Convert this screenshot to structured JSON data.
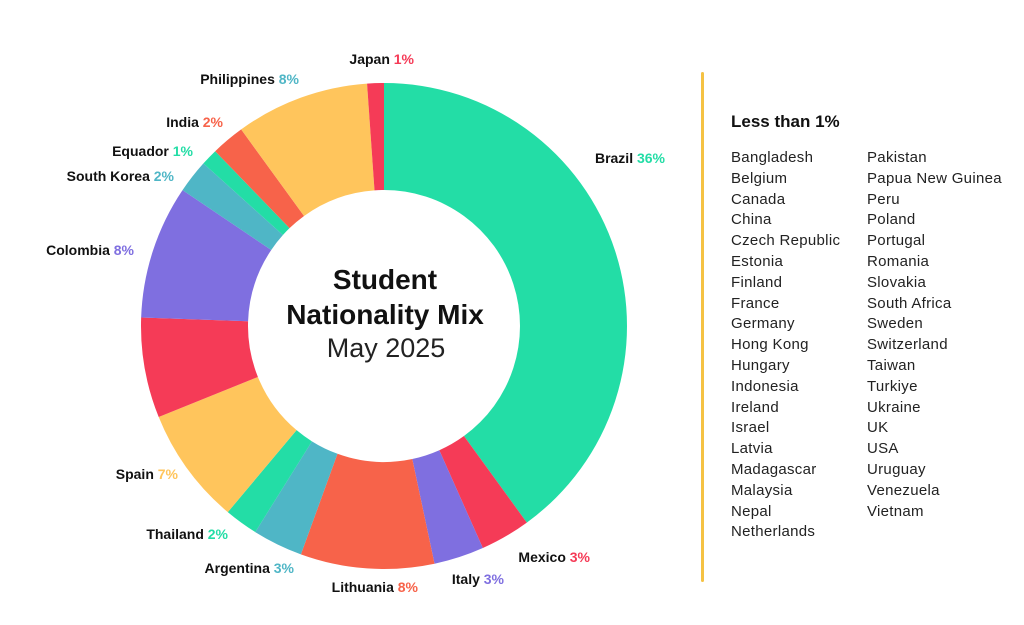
{
  "chart_data": {
    "type": "pie",
    "title": "Student Nationality Mix",
    "subtitle": "May 2025",
    "slices": [
      {
        "label": "Brazil",
        "value": 36,
        "value_label": "36%",
        "color": "#23dda6",
        "label_color": "#23dda6"
      },
      {
        "label": "Mexico",
        "value": 3,
        "value_label": "3%",
        "color": "#f53b57",
        "label_color": "#f53b57"
      },
      {
        "label": "Italy",
        "value": 3,
        "value_label": "3%",
        "color": "#7f6fe0",
        "label_color": "#7f6fe0"
      },
      {
        "label": "Lithuania",
        "value": 8,
        "value_label": "8%",
        "color": "#f7634a",
        "label_color": "#f7634a"
      },
      {
        "label": "Argentina",
        "value": 3,
        "value_label": "3%",
        "color": "#4fb6c6",
        "label_color": "#4fb6c6"
      },
      {
        "label": "Thailand",
        "value": 2,
        "value_label": "2%",
        "color": "#23dda6",
        "label_color": "#23dda6"
      },
      {
        "label": "Spain",
        "value": 7,
        "value_label": "7%",
        "color": "#ffc55c",
        "label_color": "#ffc55c"
      },
      {
        "label": "",
        "value": 6,
        "value_label": "",
        "color": "#f53b57",
        "label_color": "#f53b57"
      },
      {
        "label": "Colombia",
        "value": 8,
        "value_label": "8%",
        "color": "#7f6fe0",
        "label_color": "#7f6fe0"
      },
      {
        "label": "South Korea",
        "value": 2,
        "value_label": "2%",
        "color": "#4fb6c6",
        "label_color": "#4fb6c6"
      },
      {
        "label": "Equador",
        "value": 1,
        "value_label": "1%",
        "color": "#23dda6",
        "label_color": "#23dda6"
      },
      {
        "label": "India",
        "value": 2,
        "value_label": "2%",
        "color": "#f7634a",
        "label_color": "#f7634a"
      },
      {
        "label": "Philippines",
        "value": 8,
        "value_label": "8%",
        "color": "#ffc55c",
        "label_color": "#4fb6c6"
      },
      {
        "label": "Japan",
        "value": 1,
        "value_label": "1%",
        "color": "#f53b57",
        "label_color": "#f53b57"
      }
    ]
  },
  "legend": {
    "title": "Less than 1%",
    "column_1": [
      "Bangladesh",
      "Belgium",
      "Canada",
      "China",
      "Czech Republic",
      "Estonia",
      "Finland",
      "France",
      "Germany",
      "Hong Kong",
      "Hungary",
      "Indonesia",
      "Ireland",
      "Israel",
      "Latvia",
      "Madagascar",
      "Malaysia",
      "Nepal",
      "Netherlands"
    ],
    "column_2": [
      "Pakistan",
      "Papua New Guinea",
      "Peru",
      "Poland",
      "Portugal",
      "Romania",
      "Slovakia",
      "South Africa",
      "Sweden",
      "Switzerland",
      "Taiwan",
      "Turkiye",
      "Ukraine",
      "UK",
      "USA",
      "Uruguay",
      "Venezuela",
      "Vietnam"
    ]
  },
  "colors": {
    "divider": "#f5c243"
  }
}
